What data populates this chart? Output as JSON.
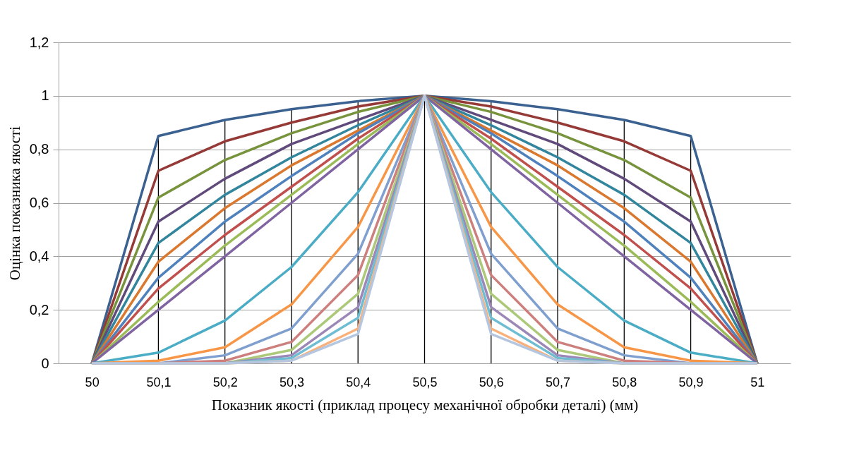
{
  "chart_data": {
    "type": "line",
    "xlabel": "Показник  якості  (приклад процесу механічної обробки деталі)  (мм)",
    "ylabel": "Оцінка показника якості",
    "categories": [
      "50",
      "50,1",
      "50,2",
      "50,3",
      "50,4",
      "50,5",
      "50,6",
      "50,7",
      "50,8",
      "50,9",
      "51"
    ],
    "ylim": [
      0,
      1.2
    ],
    "yticks": [
      0,
      {
        "value": 0.2,
        "label": "0,2"
      },
      {
        "value": 0.4,
        "label": "0,4"
      },
      {
        "value": 0.6,
        "label": "0,6"
      },
      {
        "value": 0.8,
        "label": "0,8"
      },
      1,
      {
        "value": 1.2,
        "label": "1,2"
      }
    ],
    "grid": true,
    "legend": false,
    "marker": "none",
    "line_style": "solid",
    "series": [
      {
        "color": "#3a6190",
        "values": [
          0,
          0.85,
          0.91,
          0.95,
          0.98,
          1,
          0.98,
          0.95,
          0.91,
          0.85,
          0
        ]
      },
      {
        "color": "#963a38",
        "values": [
          0,
          0.72,
          0.83,
          0.9,
          0.96,
          1,
          0.96,
          0.9,
          0.83,
          0.72,
          0
        ]
      },
      {
        "color": "#77933c",
        "values": [
          0,
          0.62,
          0.76,
          0.86,
          0.94,
          1,
          0.94,
          0.86,
          0.76,
          0.62,
          0
        ]
      },
      {
        "color": "#604a7b",
        "values": [
          0,
          0.53,
          0.69,
          0.82,
          0.91,
          1,
          0.91,
          0.82,
          0.69,
          0.53,
          0
        ]
      },
      {
        "color": "#31859c",
        "values": [
          0,
          0.45,
          0.63,
          0.77,
          0.89,
          1,
          0.89,
          0.77,
          0.63,
          0.45,
          0
        ]
      },
      {
        "color": "#d9782e",
        "values": [
          0,
          0.38,
          0.58,
          0.74,
          0.87,
          1,
          0.87,
          0.74,
          0.58,
          0.38,
          0
        ]
      },
      {
        "color": "#4f81bd",
        "values": [
          0,
          0.32,
          0.53,
          0.7,
          0.86,
          1,
          0.86,
          0.7,
          0.53,
          0.32,
          0
        ]
      },
      {
        "color": "#c0504d",
        "values": [
          0,
          0.28,
          0.48,
          0.66,
          0.84,
          1,
          0.84,
          0.66,
          0.48,
          0.28,
          0
        ]
      },
      {
        "color": "#9bbb59",
        "values": [
          0,
          0.23,
          0.44,
          0.63,
          0.82,
          1,
          0.82,
          0.63,
          0.44,
          0.23,
          0
        ]
      },
      {
        "color": "#8064a2",
        "values": [
          0,
          0.2,
          0.4,
          0.6,
          0.8,
          1,
          0.8,
          0.6,
          0.4,
          0.2,
          0
        ]
      },
      {
        "color": "#4bacc6",
        "values": [
          0,
          0.04,
          0.16,
          0.36,
          0.64,
          1,
          0.64,
          0.36,
          0.16,
          0.04,
          0
        ]
      },
      {
        "color": "#f79646",
        "values": [
          0,
          0.01,
          0.06,
          0.22,
          0.51,
          1,
          0.51,
          0.22,
          0.06,
          0.01,
          0
        ]
      },
      {
        "color": "#7f9fcf",
        "values": [
          0,
          0,
          0.03,
          0.13,
          0.41,
          1,
          0.41,
          0.13,
          0.03,
          0,
          0
        ]
      },
      {
        "color": "#cd7f7d",
        "values": [
          0,
          0,
          0.01,
          0.08,
          0.33,
          1,
          0.33,
          0.08,
          0.01,
          0,
          0
        ]
      },
      {
        "color": "#acc97a",
        "values": [
          0,
          0,
          0,
          0.05,
          0.26,
          1,
          0.26,
          0.05,
          0,
          0,
          0
        ]
      },
      {
        "color": "#9c88b7",
        "values": [
          0,
          0,
          0,
          0.03,
          0.21,
          1,
          0.21,
          0.03,
          0,
          0,
          0
        ]
      },
      {
        "color": "#6fbdd2",
        "values": [
          0,
          0,
          0,
          0.02,
          0.17,
          1,
          0.17,
          0.02,
          0,
          0,
          0
        ]
      },
      {
        "color": "#f9b07a",
        "values": [
          0,
          0,
          0,
          0.01,
          0.13,
          1,
          0.13,
          0.01,
          0,
          0,
          0
        ]
      },
      {
        "color": "#b4c6e0",
        "values": [
          0,
          0,
          0,
          0.01,
          0.11,
          1,
          0.11,
          0.01,
          0,
          0,
          0
        ]
      }
    ]
  }
}
